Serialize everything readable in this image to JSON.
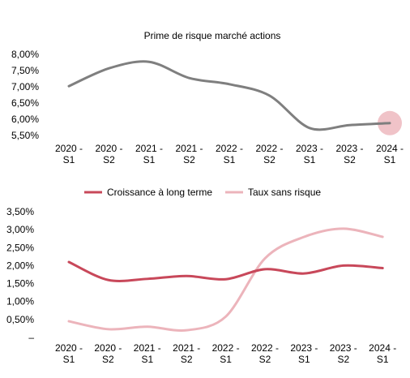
{
  "chart_data": [
    {
      "type": "line",
      "title": "Prime de risque marché actions",
      "categories": [
        [
          "2020 -",
          "S1"
        ],
        [
          "2020 -",
          "S2"
        ],
        [
          "2021 -",
          "S1"
        ],
        [
          "2021 -",
          "S2"
        ],
        [
          "2022 -",
          "S1"
        ],
        [
          "2022 -",
          "S2"
        ],
        [
          "2023 -",
          "S1"
        ],
        [
          "2023 -",
          "S2"
        ],
        [
          "2024 -",
          "S1"
        ]
      ],
      "yticks": [
        "5,50%",
        "6,00%",
        "6,50%",
        "7,00%",
        "7,50%",
        "8,00%"
      ],
      "ylim": [
        5.5,
        8.0
      ],
      "grid": false,
      "series": [
        {
          "values": [
            7.02,
            7.57,
            7.77,
            7.27,
            7.08,
            6.73,
            5.73,
            5.82,
            5.88
          ],
          "color": "#7f7f7f",
          "highlight_last": true,
          "highlight_color": "#f0c3c8"
        }
      ]
    },
    {
      "type": "line",
      "title": "",
      "categories": [
        [
          "2020 -",
          "S1"
        ],
        [
          "2020 -",
          "S2"
        ],
        [
          "2021 -",
          "S1"
        ],
        [
          "2021 -",
          "S2"
        ],
        [
          "2022 -",
          "S1"
        ],
        [
          "2022 -",
          "S2"
        ],
        [
          "2023 -",
          "S1"
        ],
        [
          "2023 -",
          "S2"
        ],
        [
          "2024 -",
          "S1"
        ]
      ],
      "yticks": [
        "–",
        "0,50%",
        "1,00%",
        "1,50%",
        "2,00%",
        "2,50%",
        "3,00%",
        "3,50%"
      ],
      "ylim": [
        0,
        3.5
      ],
      "grid": false,
      "legend_position": "top",
      "series": [
        {
          "name": "Croissance à long terme",
          "values": [
            2.1,
            1.6,
            1.63,
            1.71,
            1.62,
            1.9,
            1.78,
            2.0,
            1.93
          ],
          "color": "#c8485a"
        },
        {
          "name": "Taux sans risque",
          "values": [
            0.45,
            0.23,
            0.3,
            0.2,
            0.58,
            2.2,
            2.8,
            3.03,
            2.8
          ],
          "color": "#ecb4bb"
        }
      ]
    }
  ]
}
